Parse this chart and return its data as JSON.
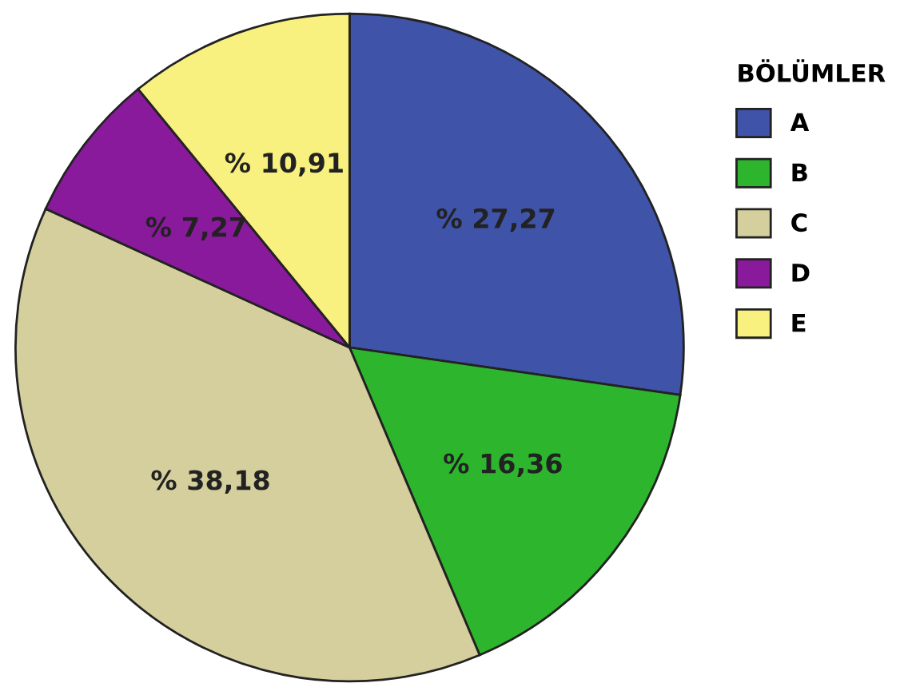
{
  "chart_data": {
    "type": "pie",
    "legend_title": "BÖLÜMLER",
    "legend": "right",
    "categories": [
      "A",
      "B",
      "C",
      "D",
      "E"
    ],
    "values": [
      27.27,
      16.36,
      38.18,
      7.27,
      10.91
    ],
    "value_labels": [
      "% 27,27",
      "% 16,36",
      "% 38,18",
      "% 7,27",
      "% 10,91"
    ],
    "colors": [
      "#3f53a8",
      "#2eb52e",
      "#d4cf9c",
      "#8a1a9c",
      "#f8f07f"
    ]
  }
}
